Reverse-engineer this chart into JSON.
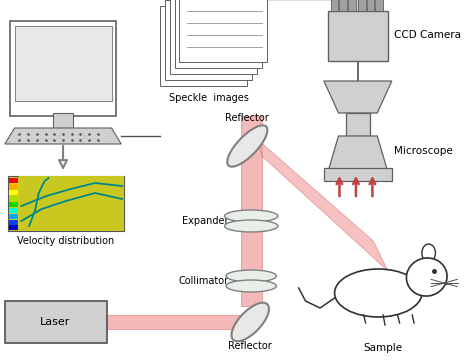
{
  "bg_color": "#ffffff",
  "gray_light": "#d0d0d0",
  "gray_med": "#a0a0a0",
  "gray_dark": "#808080",
  "laser_color": "#d05050",
  "laser_beam_color": "#f0a0a0",
  "arrow_color": "#c04040",
  "text_color": "#000000",
  "labels": {
    "ccd": "CCD Camera",
    "microscope": "Microscope",
    "speckle": "Speckle  images",
    "velocity": "Velocity distribution",
    "laser": "Laser",
    "reflector_top": "Reflector",
    "expander": "Expander",
    "collimator": "Collimator",
    "reflector_bot": "Reflector",
    "sample": "Sample"
  },
  "figsize": [
    4.74,
    3.61
  ],
  "dpi": 100
}
